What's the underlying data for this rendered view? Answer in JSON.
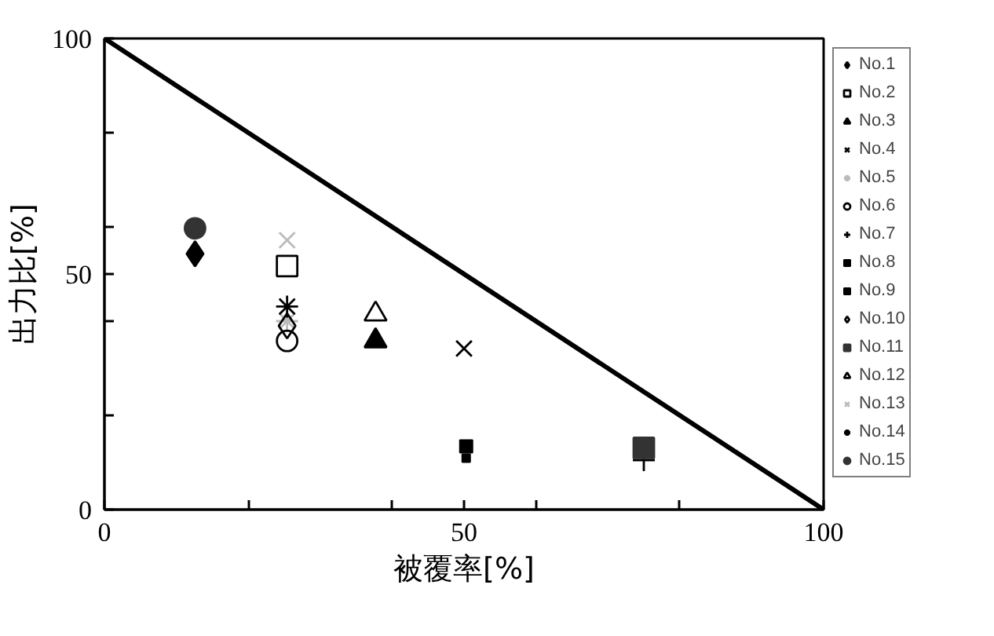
{
  "chart_data": {
    "type": "scatter",
    "xlabel": "被覆率[%]",
    "ylabel": "出力比[%]",
    "xlim": [
      0,
      100
    ],
    "ylim": [
      0,
      100
    ],
    "xticks": [
      0,
      {
        "value": 20,
        "label": null
      },
      {
        "value": 40,
        "label": null
      },
      50,
      {
        "value": 60,
        "label": null
      },
      {
        "value": 80,
        "label": null
      },
      100
    ],
    "yticks": [
      0,
      {
        "value": 20,
        "label": null
      },
      {
        "value": 40,
        "label": null
      },
      50,
      {
        "value": 60,
        "label": null
      },
      {
        "value": 80,
        "label": null
      },
      100
    ],
    "grid": false,
    "legend": "right",
    "series": [
      {
        "name": "No.1",
        "color": "#000000",
        "marker": "diamond",
        "x": [
          12.6
        ],
        "values": [
          54.3
        ]
      },
      {
        "name": "No.2",
        "color": "#000000",
        "marker": "square",
        "x": [
          25.4
        ],
        "values": [
          51.7
        ]
      },
      {
        "name": "No.3",
        "color": "#000000",
        "marker": "triangle",
        "x": [
          37.7
        ],
        "values": [
          35.8
        ]
      },
      {
        "name": "No.4",
        "color": "#000000",
        "marker": "cross",
        "x": [
          50
        ],
        "values": [
          34.2
        ]
      },
      {
        "name": "No.5",
        "color": "#bbbbbb",
        "marker": "cross",
        "x": [
          25.4
        ],
        "values": [
          40
        ]
      },
      {
        "name": "No.6",
        "color": "#000000",
        "marker": "circle",
        "x": [
          25.4
        ],
        "values": [
          35.8
        ]
      },
      {
        "name": "No.7",
        "color": "#000000",
        "marker": "cross",
        "x": [
          75
        ],
        "values": [
          10.5
        ]
      },
      {
        "name": "No.8",
        "color": "#000000",
        "marker": "square",
        "x": [
          50.3
        ],
        "values": [
          10.9
        ]
      },
      {
        "name": "No.9",
        "color": "#000000",
        "marker": "square",
        "x": [
          50.3
        ],
        "values": [
          13.4
        ]
      },
      {
        "name": "No.10",
        "color": "#000000",
        "marker": "diamond",
        "x": [
          25.4
        ],
        "values": [
          39
        ]
      },
      {
        "name": "No.11",
        "color": "#333333",
        "marker": "square",
        "x": [
          75
        ],
        "values": [
          13.1
        ]
      },
      {
        "name": "No.12",
        "color": "#000000",
        "marker": "triangle",
        "x": [
          37.7
        ],
        "values": [
          41.5
        ]
      },
      {
        "name": "No.13",
        "color": "#bbbbbb",
        "marker": "cross",
        "x": [
          25.4
        ],
        "values": [
          57.2
        ]
      },
      {
        "name": "No.14",
        "color": "#000000",
        "marker": "cross",
        "x": [
          25.4
        ],
        "values": [
          43.1
        ]
      },
      {
        "name": "No.15",
        "color": "#333333",
        "marker": "circle",
        "x": [
          12.6
        ],
        "values": [
          59.7
        ]
      },
      {
        "type": "line",
        "color": "#000000",
        "x": [
          0,
          100
        ],
        "values": [
          100,
          0
        ]
      }
    ]
  }
}
